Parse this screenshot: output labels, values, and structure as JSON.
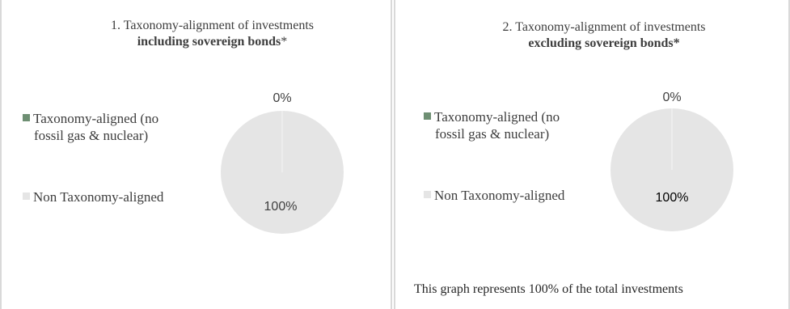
{
  "colors": {
    "aligned": "#6e8f73",
    "non_aligned": "#e5e5e5",
    "border": "#d9d9d9"
  },
  "chart_data": [
    {
      "type": "pie",
      "title_line1": "1. Taxonomy-alignment of investments",
      "title_bold": "including sovereign bonds",
      "title_suffix": "*",
      "legend": [
        "Taxonomy-aligned (no",
        "fossil gas & nuclear)",
        "Non Taxonomy-aligned"
      ],
      "slices": [
        {
          "label": "Taxonomy-aligned (no fossil gas & nuclear)",
          "value": 0,
          "display": "0%"
        },
        {
          "label": "Non Taxonomy-aligned",
          "value": 100,
          "display": "100%"
        }
      ]
    },
    {
      "type": "pie",
      "title_line1": "2. Taxonomy-alignment of investments",
      "title_bold": "excluding sovereign bonds*",
      "title_suffix": "",
      "legend": [
        "Taxonomy-aligned (no",
        "fossil gas & nuclear)",
        "Non Taxonomy-aligned"
      ],
      "slices": [
        {
          "label": "Taxonomy-aligned (no fossil gas & nuclear)",
          "value": 0,
          "display": "0%"
        },
        {
          "label": "Non Taxonomy-aligned",
          "value": 100,
          "display": "100%"
        }
      ],
      "footnote": "This graph represents 100% of the total investments"
    }
  ]
}
